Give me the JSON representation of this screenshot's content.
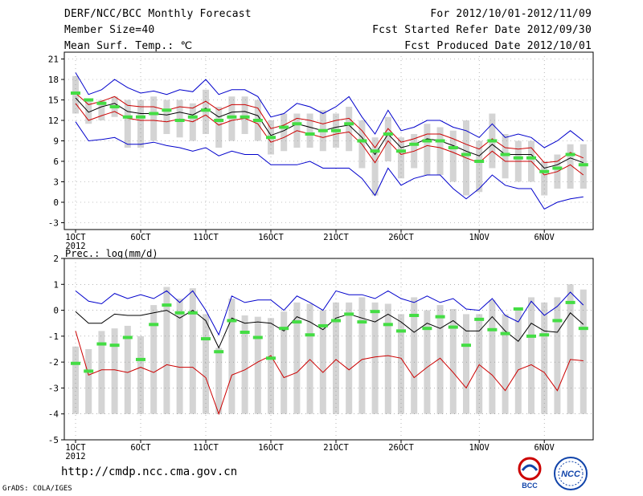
{
  "header": {
    "title": "DERF/NCC/BCC Monthly Forecast",
    "member_size": "Member Size=40",
    "variable": "Mean Surf. Temp.: ℃",
    "period": "For 2012/10/01-2012/11/09",
    "refer_date": "Fcst Started Refer Date 2012/09/30",
    "produced_date": "Fcst Produced Date 2012/10/01"
  },
  "footer": {
    "url": "http://cmdp.ncc.cma.gov.cn",
    "credit": "GrADS: COLA/IGES",
    "logo_left_text": "BCC",
    "logo_right_text": "NCC"
  },
  "colors": {
    "max_line": "#0000cc",
    "min_line": "#0000cc",
    "mean_line": "#000000",
    "spread_lines": "#cc0000",
    "green_marker": "#44dd44",
    "box": "#d4d4d4"
  },
  "chart_data": [
    {
      "type": "line",
      "title": "Mean Surf. Temp.: ℃",
      "ylim": [
        -4,
        22
      ],
      "yticks": [
        -3,
        0,
        3,
        6,
        9,
        12,
        15,
        18,
        21
      ],
      "xtick_labels": [
        "1OCT",
        "6OCT",
        "11OCT",
        "16OCT",
        "21OCT",
        "26OCT",
        "1NOV",
        "6NOV"
      ],
      "xtick_day_index": [
        0,
        5,
        10,
        15,
        20,
        25,
        31,
        36
      ],
      "year_label": "2012",
      "days": 40,
      "series": [
        {
          "name": "max",
          "color": "#0000cc",
          "values": [
            19.0,
            15.8,
            16.5,
            18.0,
            16.8,
            16.0,
            16.3,
            15.8,
            16.5,
            16.2,
            18.0,
            15.8,
            16.5,
            16.5,
            15.5,
            12.5,
            13.0,
            14.5,
            14.0,
            13.0,
            14.0,
            15.5,
            12.5,
            10.0,
            13.5,
            10.5,
            11.0,
            12.0,
            12.0,
            11.0,
            10.5,
            9.5,
            11.5,
            9.5,
            10.0,
            9.5,
            8.0,
            9.0,
            10.5,
            9.0
          ]
        },
        {
          "name": "upper",
          "color": "#cc0000",
          "values": [
            16.0,
            14.3,
            14.8,
            15.5,
            14.2,
            14.0,
            14.0,
            13.5,
            14.0,
            13.8,
            14.8,
            13.5,
            14.3,
            14.3,
            13.8,
            10.8,
            11.3,
            12.3,
            12.0,
            11.5,
            12.0,
            12.3,
            10.5,
            8.0,
            10.8,
            8.8,
            9.3,
            10.0,
            10.0,
            9.3,
            8.5,
            7.8,
            9.3,
            8.0,
            7.8,
            8.0,
            5.8,
            6.0,
            7.3,
            6.5
          ]
        },
        {
          "name": "mean",
          "color": "#000000",
          "values": [
            15.3,
            13.2,
            14.0,
            14.5,
            13.3,
            13.0,
            13.0,
            12.8,
            13.2,
            12.8,
            13.8,
            12.5,
            13.2,
            13.3,
            12.7,
            9.8,
            10.5,
            11.5,
            11.0,
            10.5,
            11.0,
            11.3,
            9.5,
            7.0,
            10.0,
            8.0,
            8.5,
            9.3,
            9.0,
            8.3,
            7.5,
            6.8,
            8.5,
            7.0,
            7.0,
            7.0,
            5.0,
            5.5,
            6.5,
            5.8
          ]
        },
        {
          "name": "lower",
          "color": "#cc0000",
          "values": [
            14.5,
            12.0,
            12.7,
            13.3,
            12.3,
            12.0,
            12.0,
            11.8,
            12.2,
            11.8,
            12.8,
            11.3,
            12.0,
            12.3,
            11.5,
            8.8,
            9.5,
            10.5,
            10.0,
            9.5,
            10.0,
            10.3,
            8.5,
            5.8,
            9.0,
            7.0,
            7.5,
            8.3,
            8.0,
            7.3,
            6.5,
            5.8,
            7.5,
            6.0,
            6.0,
            6.0,
            4.0,
            4.5,
            5.5,
            4.0
          ]
        },
        {
          "name": "min",
          "color": "#0000cc",
          "values": [
            11.8,
            9.0,
            9.2,
            9.5,
            8.5,
            8.5,
            8.8,
            8.3,
            8.0,
            7.5,
            8.0,
            6.8,
            7.5,
            7.0,
            7.0,
            5.5,
            5.5,
            5.5,
            6.0,
            5.0,
            5.0,
            5.0,
            3.5,
            1.0,
            5.0,
            2.5,
            3.5,
            4.0,
            4.0,
            2.0,
            0.5,
            2.0,
            4.0,
            2.5,
            2.0,
            2.0,
            -1.0,
            0.0,
            0.5,
            0.8
          ]
        }
      ],
      "box_low": [
        13.0,
        11.5,
        12.0,
        12.5,
        8.0,
        8.0,
        9.0,
        10.0,
        9.5,
        9.0,
        10.0,
        8.0,
        9.0,
        10.0,
        9.0,
        7.0,
        7.5,
        8.0,
        8.0,
        7.5,
        8.0,
        7.5,
        5.0,
        1.0,
        6.0,
        3.5,
        5.0,
        4.0,
        4.0,
        3.0,
        1.0,
        1.5,
        5.0,
        3.5,
        3.0,
        3.0,
        1.0,
        2.0,
        2.0,
        2.0
      ],
      "box_high": [
        18.5,
        15.0,
        15.0,
        15.5,
        15.0,
        15.0,
        15.5,
        15.0,
        15.0,
        14.5,
        16.5,
        14.0,
        15.5,
        15.5,
        15.0,
        12.0,
        13.0,
        13.0,
        13.0,
        13.5,
        13.0,
        14.0,
        12.0,
        9.5,
        12.5,
        9.5,
        10.0,
        11.5,
        11.0,
        10.5,
        12.0,
        9.0,
        13.0,
        10.0,
        9.0,
        9.0,
        6.0,
        7.0,
        8.5,
        8.5
      ],
      "green_marks": [
        16.0,
        15.0,
        14.5,
        14.0,
        12.5,
        12.5,
        13.0,
        13.5,
        12.0,
        12.5,
        13.5,
        12.0,
        12.5,
        12.5,
        12.0,
        9.5,
        11.0,
        11.5,
        10.0,
        10.5,
        10.5,
        11.5,
        9.0,
        7.5,
        10.0,
        7.5,
        8.5,
        9.0,
        9.0,
        8.0,
        7.0,
        6.0,
        9.0,
        7.0,
        6.5,
        6.5,
        4.5,
        5.0,
        7.0,
        5.5
      ]
    },
    {
      "type": "line",
      "title": "Prec.: log(mm/d)",
      "ylim": [
        -5,
        2
      ],
      "yticks": [
        -5,
        -4,
        -3,
        -2,
        -1,
        0,
        1,
        2
      ],
      "xtick_labels": [
        "1OCT",
        "6OCT",
        "11OCT",
        "16OCT",
        "21OCT",
        "26OCT",
        "1NOV",
        "6NOV"
      ],
      "xtick_day_index": [
        0,
        5,
        10,
        15,
        20,
        25,
        31,
        36
      ],
      "year_label": "2012",
      "days": 40,
      "series": [
        {
          "name": "max",
          "color": "#0000cc",
          "values": [
            0.75,
            0.35,
            0.25,
            0.65,
            0.45,
            0.6,
            0.45,
            0.75,
            0.3,
            0.75,
            0.0,
            -0.95,
            0.55,
            0.3,
            0.4,
            0.4,
            0.0,
            0.55,
            0.3,
            0.0,
            0.75,
            0.6,
            0.6,
            0.45,
            0.75,
            0.45,
            0.3,
            0.55,
            0.3,
            0.45,
            0.05,
            0.0,
            0.45,
            -0.2,
            -0.45,
            0.35,
            -0.2,
            0.15,
            0.7,
            0.2
          ]
        },
        {
          "name": "mean",
          "color": "#000000",
          "values": [
            -0.05,
            -0.5,
            -0.5,
            -0.15,
            -0.2,
            -0.2,
            -0.1,
            0.0,
            -0.3,
            0.0,
            -0.4,
            -1.45,
            -0.3,
            -0.5,
            -0.45,
            -0.5,
            -0.8,
            -0.25,
            -0.45,
            -0.75,
            -0.3,
            -0.15,
            -0.3,
            -0.45,
            -0.15,
            -0.45,
            -0.85,
            -0.5,
            -0.7,
            -0.4,
            -0.8,
            -0.8,
            -0.25,
            -0.8,
            -1.2,
            -0.5,
            -0.8,
            -0.85,
            -0.1,
            -0.55
          ]
        },
        {
          "name": "min",
          "color": "#cc0000",
          "values": [
            -0.8,
            -2.5,
            -2.3,
            -2.3,
            -2.4,
            -2.2,
            -2.4,
            -2.1,
            -2.2,
            -2.2,
            -2.6,
            -4.0,
            -2.5,
            -2.3,
            -2.0,
            -1.75,
            -2.6,
            -2.4,
            -1.9,
            -2.4,
            -1.9,
            -2.3,
            -1.9,
            -1.8,
            -1.75,
            -1.85,
            -2.6,
            -2.2,
            -1.85,
            -2.4,
            -3.0,
            -2.1,
            -2.5,
            -3.1,
            -2.3,
            -2.1,
            -2.4,
            -3.1,
            -1.9,
            -1.95
          ]
        }
      ],
      "box_low": [
        -4.0,
        -4.0,
        -4.0,
        -4.0,
        -4.0,
        -4.0,
        -4.0,
        -4.0,
        -4.0,
        -4.0,
        -4.0,
        -4.0,
        -4.0,
        -4.0,
        -4.0,
        -4.0,
        -4.0,
        -4.0,
        -4.0,
        -4.0,
        -4.0,
        -4.0,
        -4.0,
        -4.0,
        -4.0,
        -4.0,
        -4.0,
        -4.0,
        -4.0,
        -4.0,
        -4.0,
        -4.0,
        -4.0,
        -4.0,
        -4.0,
        -4.0,
        -4.0,
        -4.0,
        -4.0,
        -4.0
      ],
      "box_high": [
        -1.4,
        -1.5,
        -0.8,
        -0.7,
        -0.6,
        -1.0,
        0.2,
        0.9,
        0.45,
        0.85,
        -0.15,
        -1.45,
        0.45,
        -0.2,
        -0.25,
        -0.3,
        -0.05,
        0.3,
        0.25,
        0.0,
        0.3,
        0.3,
        0.5,
        0.3,
        0.25,
        -0.15,
        0.5,
        0.0,
        0.2,
        0.05,
        -0.15,
        -0.15,
        0.4,
        -0.15,
        0.0,
        0.5,
        0.3,
        0.5,
        1.0,
        0.8
      ],
      "green_marks": [
        -2.05,
        -2.35,
        -1.3,
        -1.35,
        -1.05,
        -1.9,
        -0.55,
        0.2,
        -0.1,
        -0.1,
        -1.1,
        -1.6,
        -0.4,
        -0.85,
        -1.05,
        -1.85,
        -0.7,
        -0.45,
        -0.95,
        -0.6,
        -0.4,
        -0.15,
        -0.45,
        -0.05,
        -0.55,
        -0.8,
        -0.2,
        -0.7,
        -0.25,
        -0.65,
        -1.35,
        -0.35,
        -0.75,
        -0.9,
        0.05,
        -1.0,
        -0.95,
        -0.4,
        0.3,
        -0.7
      ]
    }
  ]
}
